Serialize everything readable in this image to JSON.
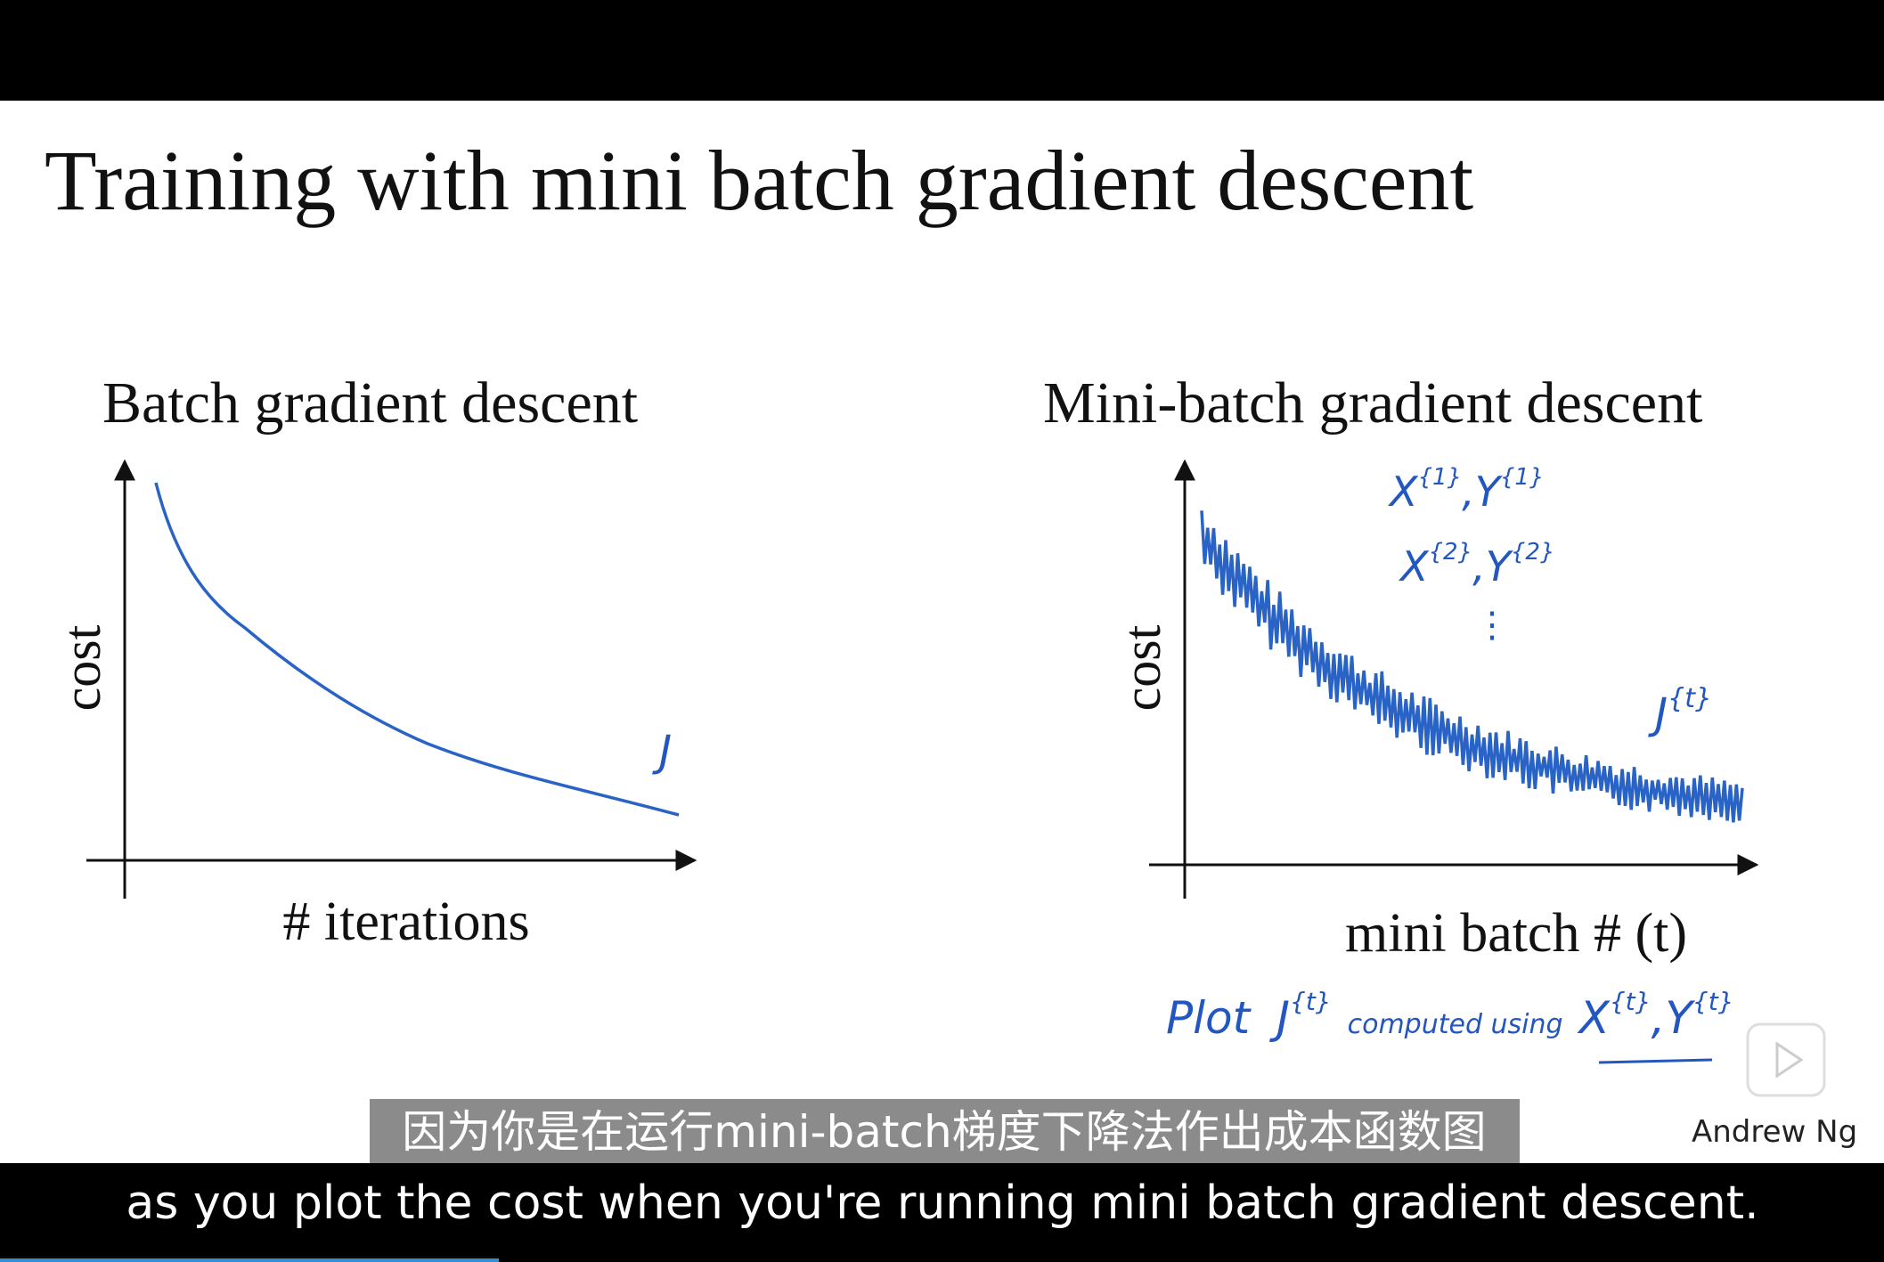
{
  "slide": {
    "title": "Training with mini batch gradient descent",
    "left": {
      "title": "Batch gradient descent",
      "y_label": "cost",
      "x_label": "# iterations",
      "annotation": "J"
    },
    "right": {
      "title": "Mini-batch gradient descent",
      "y_label": "cost",
      "x_label": "mini batch # (t)",
      "annotations": [
        {
          "x": "X",
          "x_sup": "{1}",
          "y": "Y",
          "y_sup": "{1}"
        },
        {
          "x": "X",
          "x_sup": "{2}",
          "y": "Y",
          "y_sup": "{2}"
        }
      ],
      "cost_label": {
        "base": "J",
        "sup": "{t}"
      },
      "note": {
        "plot": "Plot",
        "j": "J",
        "j_sup": "{t}",
        "computed": "computed using",
        "x": "X",
        "x_sup": "{t}",
        "y": "Y",
        "y_sup": "{t}"
      }
    },
    "author": "Andrew Ng"
  },
  "subtitles": {
    "zh": "因为你是在运行mini-batch梯度下降法作出成本函数图",
    "en": "as you plot the cost when you're running mini batch gradient descent."
  }
}
